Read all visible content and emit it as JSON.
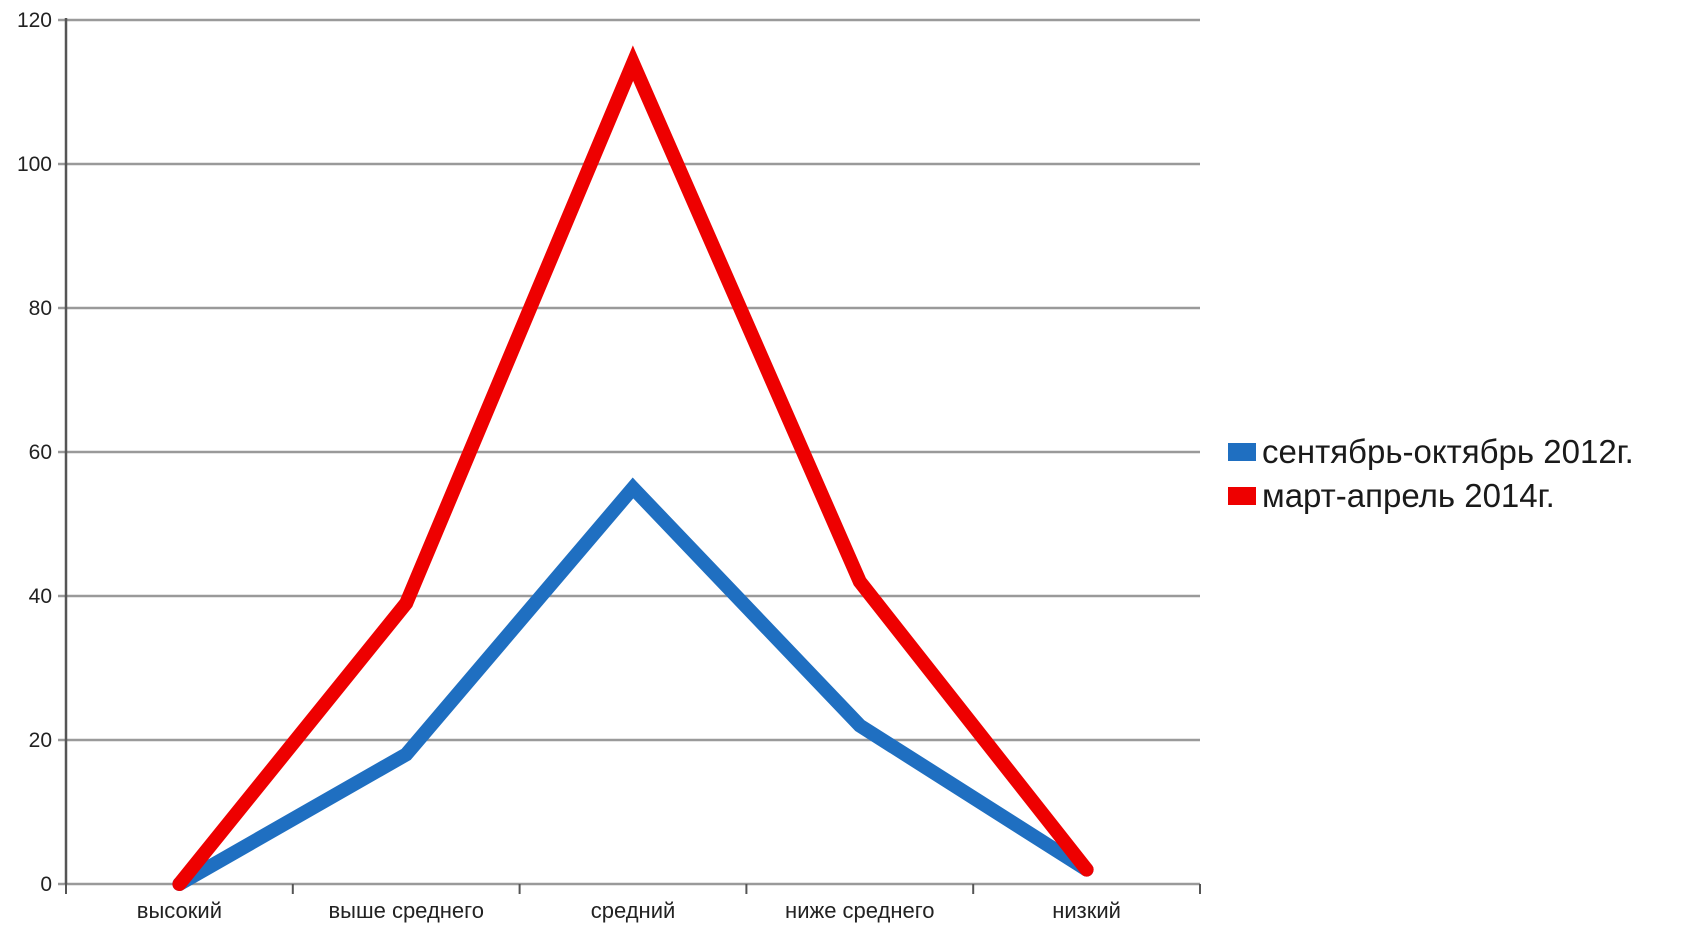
{
  "chart_data": {
    "type": "line",
    "categories": [
      "высокий",
      "выше среднего",
      "средний",
      "ниже среднего",
      "низкий"
    ],
    "series": [
      {
        "name": "сентябрь-октябрь 2012г.",
        "values": [
          0,
          18,
          55,
          22,
          2
        ],
        "color": "#1f6fc1"
      },
      {
        "name": "март-апрель 2014г.",
        "values": [
          0,
          39,
          114,
          42,
          2
        ],
        "color": "#ee0000"
      }
    ],
    "ylim": [
      0,
      120
    ],
    "yticks": [
      "0",
      "20",
      "40",
      "60",
      "80",
      "100",
      "120"
    ],
    "grid": true,
    "legend_position": "right",
    "title": "",
    "xlabel": "",
    "ylabel": "",
    "colors": {
      "grid": "#9a9a9a",
      "axis": "#555555"
    }
  }
}
